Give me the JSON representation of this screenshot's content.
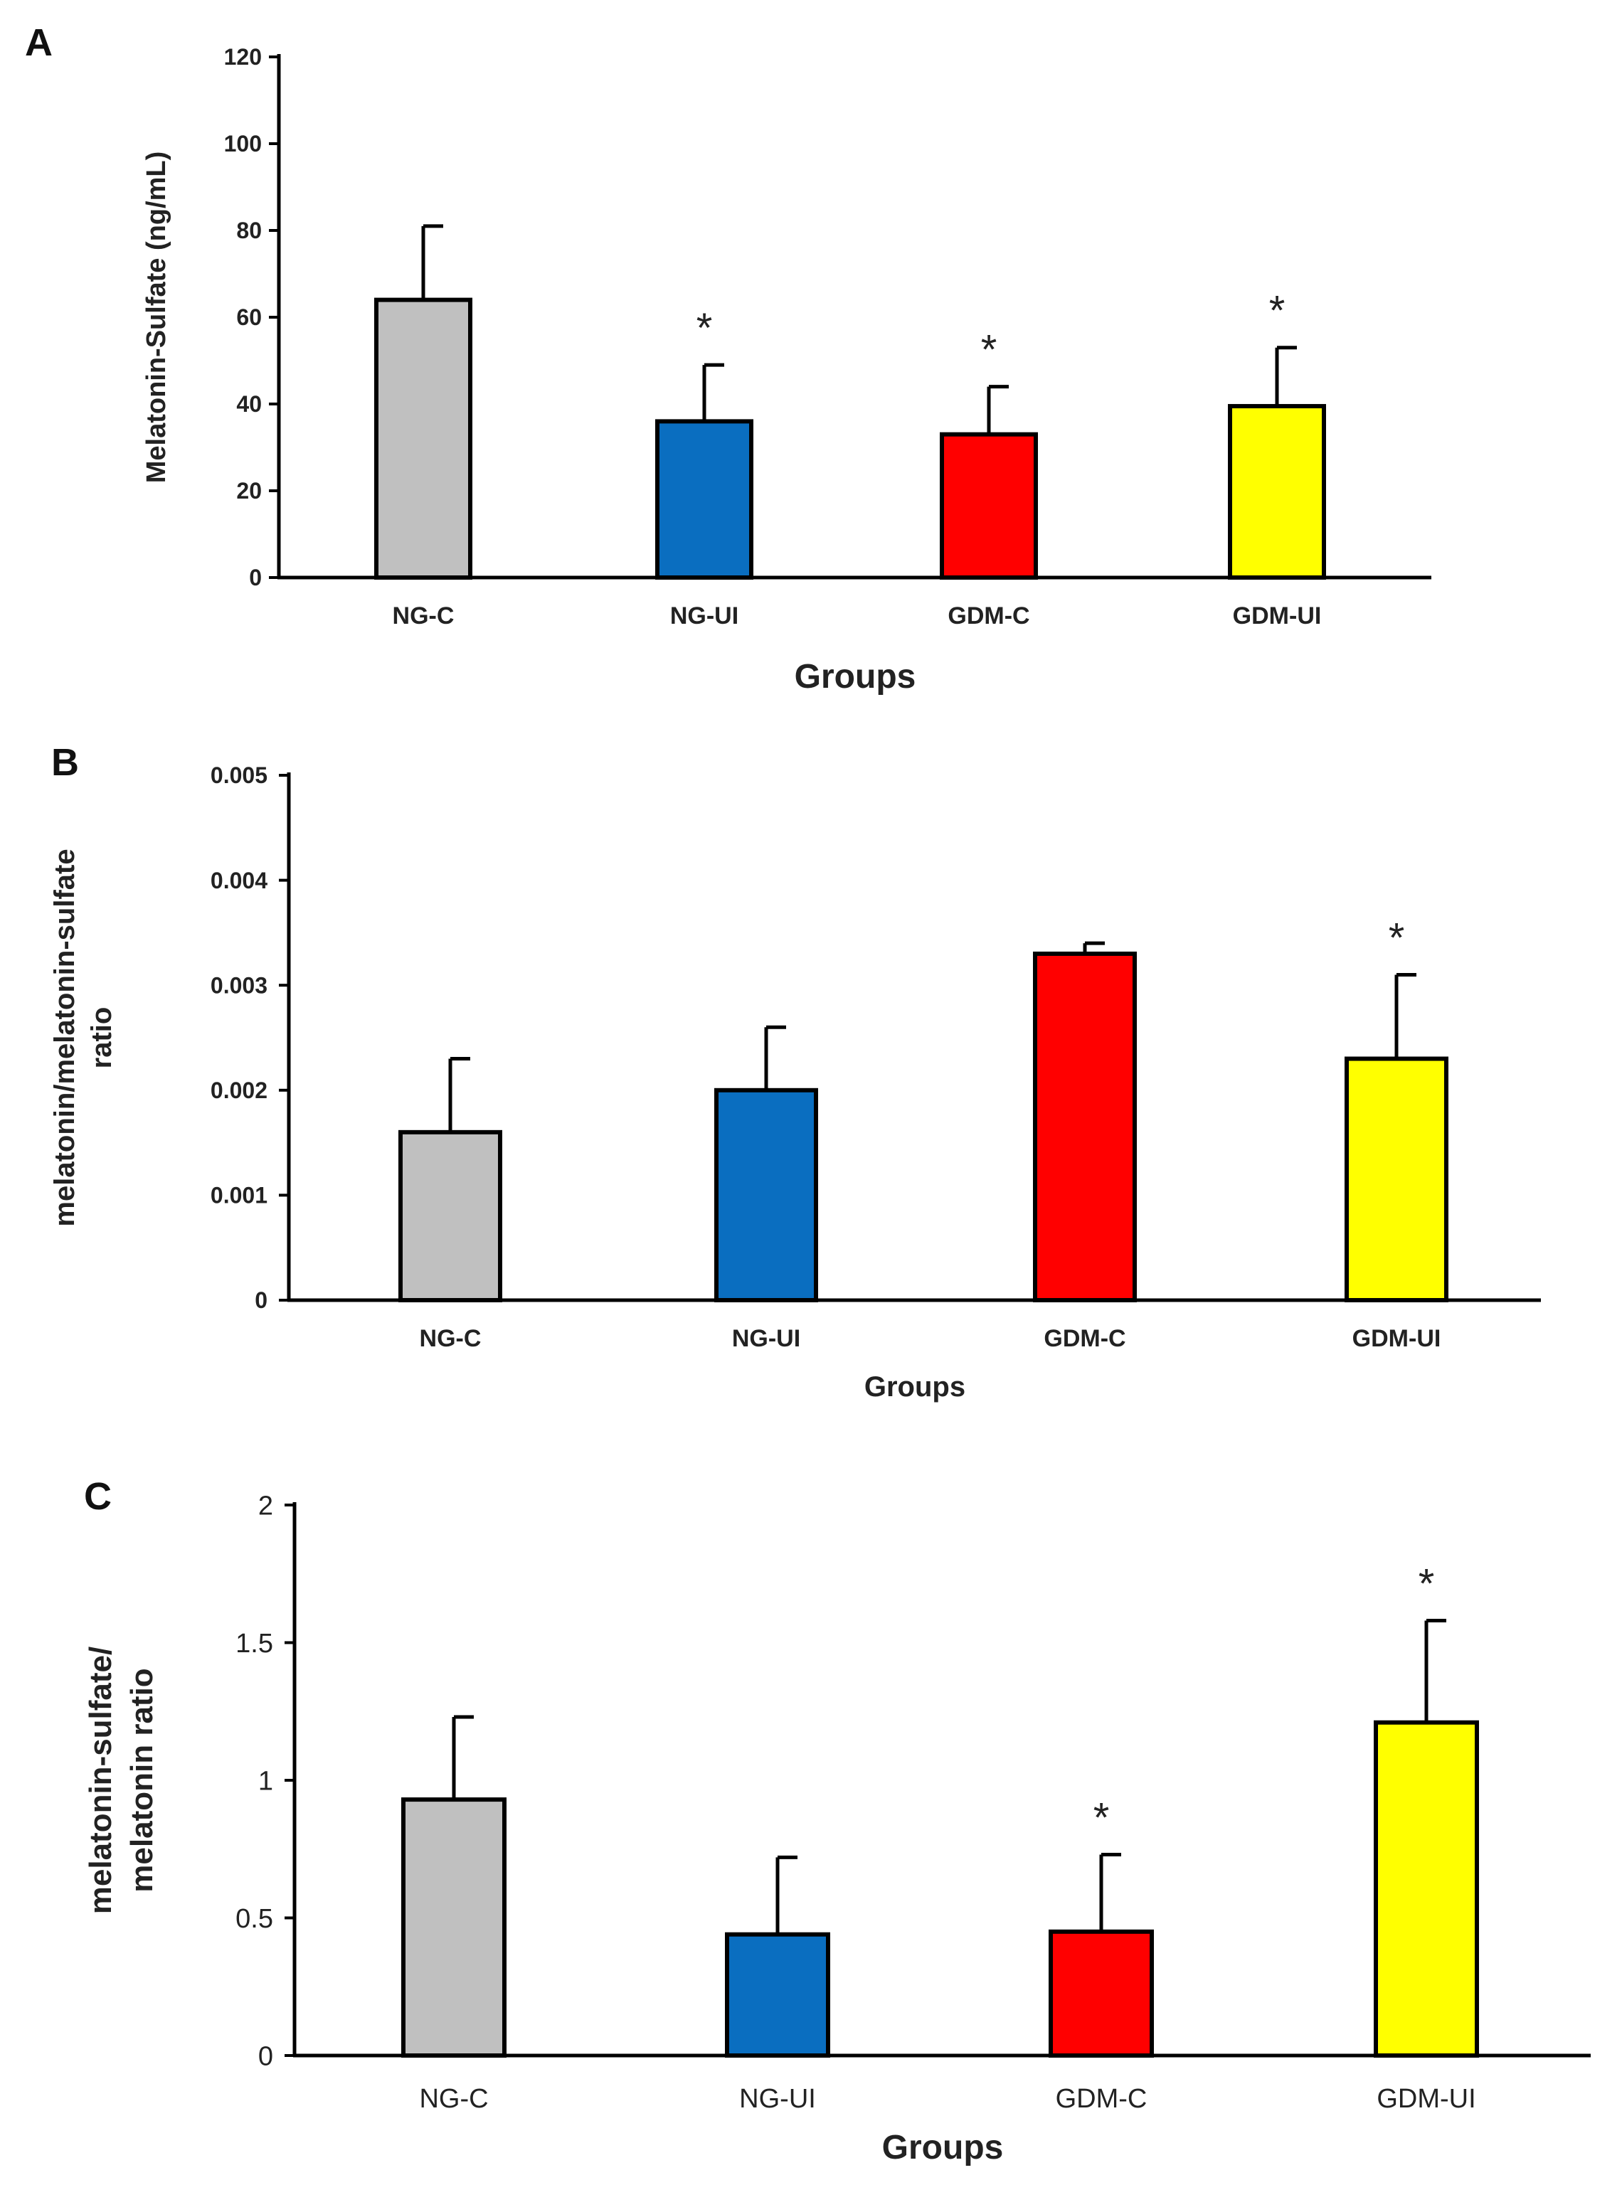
{
  "figure": {
    "colors": {
      "NG-C": "#c0c0c0",
      "NG-UI": "#0a6ec0",
      "GDM-C": "#ff0000",
      "GDM-UI": "#ffff00",
      "axis": "#000000",
      "bar_outline": "#000000"
    }
  },
  "chart_data": [
    {
      "panel": "A",
      "type": "bar",
      "categories": [
        "NG-C",
        "NG-UI",
        "GDM-C",
        "GDM-UI"
      ],
      "values": [
        64,
        36,
        33,
        39.5
      ],
      "errors": [
        17,
        13,
        11,
        13.5
      ],
      "significant": [
        false,
        true,
        true,
        true
      ],
      "significance_marker": "*",
      "xlabel": "Groups",
      "ylabel": "Melatonin-Sulfate (ng/mL)",
      "ylim": [
        0,
        120
      ],
      "yticks": [
        0,
        20,
        40,
        60,
        80,
        100,
        120
      ],
      "ytick_labels": [
        "0",
        "20",
        "40",
        "60",
        "80",
        "100",
        "120"
      ],
      "grid": false,
      "legend": "none"
    },
    {
      "panel": "B",
      "type": "bar",
      "categories": [
        "NG-C",
        "NG-UI",
        "GDM-C",
        "GDM-UI"
      ],
      "values": [
        0.0016,
        0.002,
        0.0033,
        0.0023
      ],
      "errors": [
        0.0007,
        0.0006,
        0.0001,
        0.0008
      ],
      "significant": [
        false,
        false,
        false,
        true
      ],
      "significance_marker": "*",
      "xlabel": "Groups",
      "ylabel": "melatonin/melatonin-sulfate ratio",
      "ylabel_lines": [
        "melatonin/melatonin-sulfate",
        "ratio"
      ],
      "ylim": [
        0,
        0.005
      ],
      "yticks": [
        0,
        0.001,
        0.002,
        0.003,
        0.004,
        0.005
      ],
      "ytick_labels": [
        "0",
        "0.001",
        "0.002",
        "0.003",
        "0.004",
        "0.005"
      ],
      "grid": false,
      "legend": "none"
    },
    {
      "panel": "C",
      "type": "bar",
      "categories": [
        "NG-C",
        "NG-UI",
        "GDM-C",
        "GDM-UI"
      ],
      "values": [
        0.93,
        0.44,
        0.45,
        1.21
      ],
      "errors": [
        0.3,
        0.28,
        0.28,
        0.37
      ],
      "significant": [
        false,
        false,
        true,
        true
      ],
      "significance_marker": "*",
      "xlabel": "Groups",
      "ylabel": "melatonin-sulfate/ melatonin ratio",
      "ylabel_lines": [
        "melatonin-sulfate/",
        "melatonin ratio"
      ],
      "ylim": [
        0,
        2
      ],
      "yticks": [
        0,
        0.5,
        1,
        1.5,
        2
      ],
      "ytick_labels": [
        "0",
        "0.5",
        "1",
        "1.5",
        "2"
      ],
      "grid": false,
      "legend": "none"
    }
  ]
}
